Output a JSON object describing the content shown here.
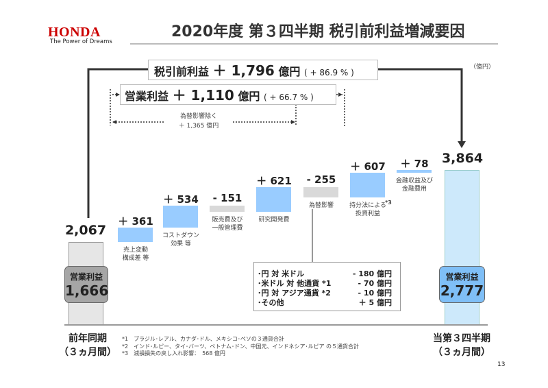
{
  "header": {
    "logo": "HONDA",
    "tagline": "The Power of Dreams",
    "title": "2020年度 第３四半期 税引前利益増減要因",
    "unit": "（億円）"
  },
  "pretax": {
    "label": "税引前利益",
    "value": "＋ 1,796",
    "unit": "億円",
    "pct": "( + 86.9 % )"
  },
  "operating": {
    "label": "営業利益",
    "value": "＋ 1,110",
    "unit": "億円",
    "pct": "( + 66.7 % )"
  },
  "fx_excluded": {
    "label": "為替影響除く",
    "value": "＋ 1,365 億円"
  },
  "chart_data": {
    "type": "waterfall",
    "start": {
      "label": "2,067",
      "value": 2067,
      "period": "前年同期",
      "period_sub": "（３ヵ月間）",
      "op_label": "営業利益",
      "op_value": "1,666"
    },
    "steps": [
      {
        "category": "売上変動\n構成差 等",
        "label": "＋ 361",
        "value": 361
      },
      {
        "category": "コストダウン\n効果 等",
        "label": "＋ 534",
        "value": 534
      },
      {
        "category": "販売費及び\n一般管理費",
        "label": "- 151",
        "value": -151
      },
      {
        "category": "研究開発費",
        "label": "＋ 621",
        "value": 621
      },
      {
        "category": "為替影響",
        "label": "- 255",
        "value": -255
      },
      {
        "category": "持分法による\n投資利益",
        "label": "＋ 607",
        "value": 607,
        "note": "*3"
      },
      {
        "category": "金融収益及び\n金融費用",
        "label": "＋ 78",
        "value": 78
      }
    ],
    "end": {
      "label": "3,864",
      "value": 3864,
      "period": "当第３四半期",
      "period_sub": "（３ヵ月間）",
      "op_label": "営業利益",
      "op_value": "2,777"
    },
    "colors": {
      "positive": "#99ccff",
      "negative": "#d9d9d9",
      "start": "#e6e6e6",
      "end": "#cde9fb",
      "end_pill": "#7fbff7",
      "start_pill": "#a6a6a6"
    }
  },
  "fx_breakdown": [
    {
      "label": "･円 対 米ドル",
      "value": "- 180 億円"
    },
    {
      "label": "･米ドル 対 他通貨 *1",
      "value": "- 70 億円"
    },
    {
      "label": "･円 対 アジア通貨 *2",
      "value": "- 10 億円"
    },
    {
      "label": "･その他",
      "value": "＋ 5 億円"
    }
  ],
  "notes": [
    "*1　ブラジル･レアル、カナダ･ドル、メキシコ･ペソの３通貨合計",
    "*2　インド･ルピー、タイ･バーツ、ベトナム･ドン、中国元、インドネシア･ルピア の５通貨合計",
    "*3　減損損失の戻し入れ影響：　568 億円"
  ],
  "page_number": "13"
}
